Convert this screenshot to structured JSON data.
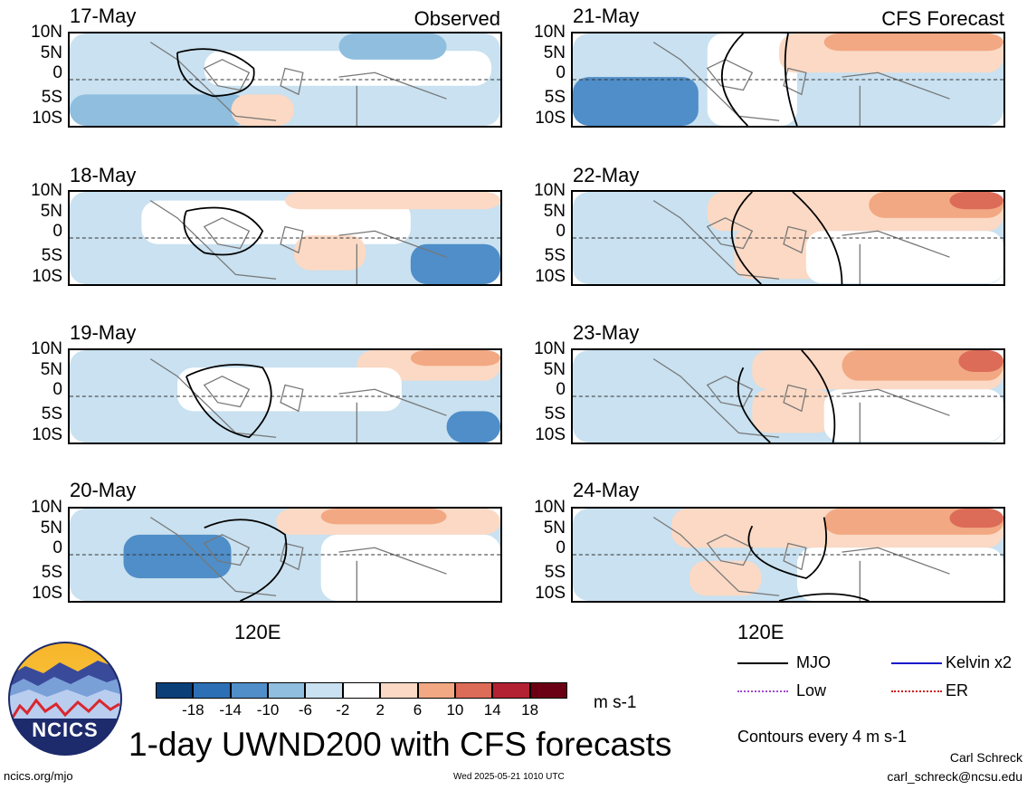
{
  "panels_left": [
    {
      "date": "17-May",
      "tag": "Observed"
    },
    {
      "date": "18-May",
      "tag": ""
    },
    {
      "date": "19-May",
      "tag": ""
    },
    {
      "date": "20-May",
      "tag": ""
    }
  ],
  "panels_right": [
    {
      "date": "21-May",
      "tag": "CFS Forecast"
    },
    {
      "date": "22-May",
      "tag": ""
    },
    {
      "date": "23-May",
      "tag": ""
    },
    {
      "date": "24-May",
      "tag": ""
    }
  ],
  "y_axis_labels": [
    "10N",
    "5N",
    "0",
    "5S",
    "10S"
  ],
  "x_axis_label": "120E",
  "colorbar": {
    "colors": [
      "#0a3f78",
      "#2d6fb5",
      "#4f8ec8",
      "#8fbede",
      "#c9e1f0",
      "#ffffff",
      "#fbd9c4",
      "#f2a882",
      "#dc6b58",
      "#b22232",
      "#6b0015"
    ],
    "tick_labels": [
      "-18",
      "-14",
      "-10",
      "-6",
      "-2",
      "2",
      "6",
      "10",
      "14",
      "18"
    ],
    "units": "m s-1"
  },
  "legend": {
    "items": [
      {
        "label": "MJO",
        "color": "#000000",
        "style": "solid"
      },
      {
        "label": "Kelvin x2",
        "color": "#1a1acc",
        "style": "solid"
      },
      {
        "label": "Low",
        "color": "#a04ad0",
        "style": "dotted"
      },
      {
        "label": "ER",
        "color": "#cc1a1a",
        "style": "dotted"
      }
    ],
    "contour_note": "Contours every 4 m s-1"
  },
  "logo": {
    "text": "NCICS"
  },
  "title": "1-day UWND200 with CFS forecasts",
  "footer": {
    "url": "ncics.org/mjo",
    "timestamp": "Wed 2025-05-21 1010 UTC",
    "author": "Carl Schreck",
    "email": "carl_schreck@ncsu.edu"
  }
}
